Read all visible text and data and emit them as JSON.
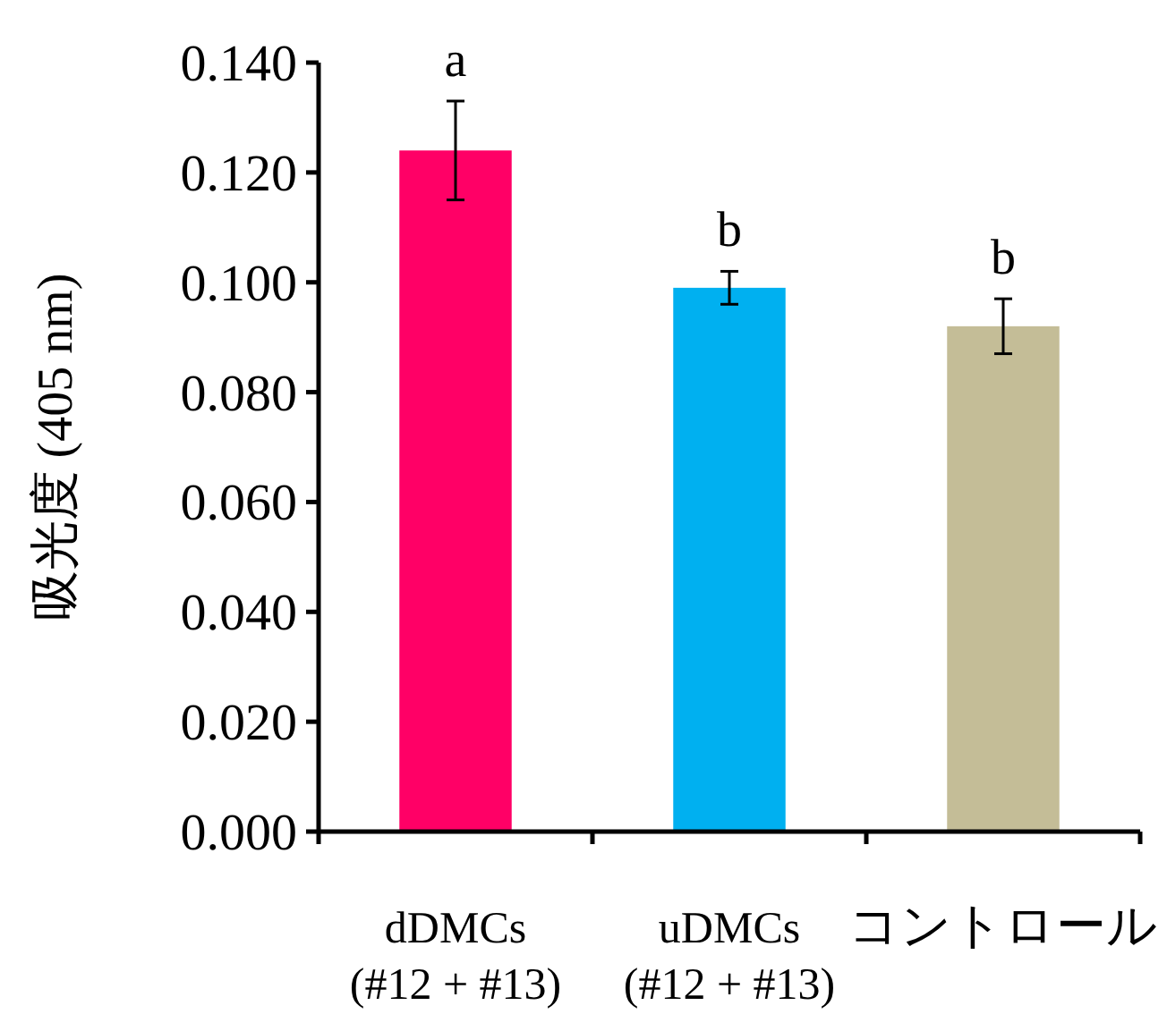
{
  "chart_data": {
    "type": "bar",
    "ylabel": "吸光度 (405 nm)",
    "categories": [
      "dDMCs\n(#12 + #13)",
      "uDMCs\n(#12 + #13)",
      "コントロール"
    ],
    "values": [
      0.124,
      0.099,
      0.092
    ],
    "colors": [
      "#ff0066",
      "#00b0f0",
      "#c4bd97"
    ],
    "errors": [
      0.009,
      0.003,
      0.005
    ],
    "ylim": [
      0,
      0.14
    ],
    "yticks": [
      {
        "value": 0,
        "label": "0.000"
      },
      {
        "value": 0.02,
        "label": "0.020"
      },
      {
        "value": 0.04,
        "label": "0.040"
      },
      {
        "value": 0.06,
        "label": "0.060"
      },
      {
        "value": 0.08,
        "label": "0.080"
      },
      {
        "value": 0.1,
        "label": "0.100"
      },
      {
        "value": 0.12,
        "label": "0.120"
      },
      {
        "value": 0.14,
        "label": "0.140"
      }
    ],
    "annotations": [
      {
        "text": "a",
        "x": "dDMCs\n(#12 + #13)",
        "y": 0.133
      },
      {
        "text": "b",
        "x": "uDMCs\n(#12 + #13)",
        "y": 0.102
      },
      {
        "text": "b",
        "x": "コントロール",
        "y": 0.097
      }
    ]
  }
}
